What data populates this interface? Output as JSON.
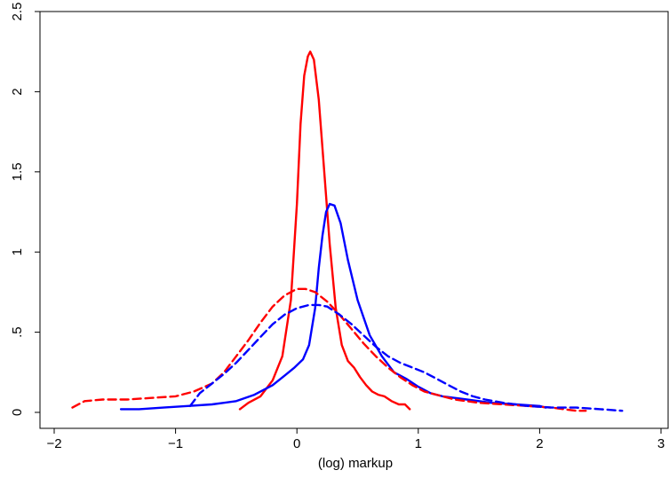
{
  "chart_data": {
    "type": "line",
    "title": "",
    "xlabel": "(log) markup",
    "ylabel": "",
    "xlim": [
      -2,
      3
    ],
    "ylim": [
      0,
      2.5
    ],
    "xticks": [
      {
        "value": -2,
        "label": "−2"
      },
      {
        "value": -1,
        "label": "−1"
      },
      {
        "value": 0,
        "label": "0"
      },
      {
        "value": 1,
        "label": "1"
      },
      {
        "value": 2,
        "label": "2"
      },
      {
        "value": 3,
        "label": "3"
      }
    ],
    "yticks": [
      {
        "value": 0,
        "label": "0"
      },
      {
        "value": 0.5,
        "label": ".5"
      },
      {
        "value": 1,
        "label": "1"
      },
      {
        "value": 1.5,
        "label": "1.5"
      },
      {
        "value": 2,
        "label": "2"
      },
      {
        "value": 2.5,
        "label": "2.5"
      }
    ],
    "grid": false,
    "legend": "none",
    "series": [
      {
        "color": "#ff0000",
        "dash": "solid",
        "points": [
          [
            -0.47,
            0.02
          ],
          [
            -0.4,
            0.06
          ],
          [
            -0.3,
            0.1
          ],
          [
            -0.2,
            0.2
          ],
          [
            -0.12,
            0.35
          ],
          [
            -0.05,
            0.7
          ],
          [
            0.0,
            1.3
          ],
          [
            0.03,
            1.8
          ],
          [
            0.06,
            2.1
          ],
          [
            0.09,
            2.22
          ],
          [
            0.11,
            2.25
          ],
          [
            0.14,
            2.2
          ],
          [
            0.18,
            1.95
          ],
          [
            0.22,
            1.55
          ],
          [
            0.27,
            1.05
          ],
          [
            0.32,
            0.65
          ],
          [
            0.37,
            0.42
          ],
          [
            0.42,
            0.32
          ],
          [
            0.47,
            0.28
          ],
          [
            0.52,
            0.22
          ],
          [
            0.57,
            0.17
          ],
          [
            0.62,
            0.13
          ],
          [
            0.67,
            0.11
          ],
          [
            0.72,
            0.1
          ],
          [
            0.78,
            0.07
          ],
          [
            0.84,
            0.05
          ],
          [
            0.89,
            0.05
          ],
          [
            0.93,
            0.02
          ]
        ]
      },
      {
        "color": "#0000ff",
        "dash": "solid",
        "points": [
          [
            -1.45,
            0.02
          ],
          [
            -1.3,
            0.02
          ],
          [
            -1.1,
            0.03
          ],
          [
            -0.9,
            0.04
          ],
          [
            -0.7,
            0.05
          ],
          [
            -0.5,
            0.07
          ],
          [
            -0.35,
            0.11
          ],
          [
            -0.2,
            0.17
          ],
          [
            -0.1,
            0.23
          ],
          [
            -0.02,
            0.28
          ],
          [
            0.05,
            0.33
          ],
          [
            0.1,
            0.42
          ],
          [
            0.15,
            0.65
          ],
          [
            0.18,
            0.9
          ],
          [
            0.21,
            1.1
          ],
          [
            0.24,
            1.25
          ],
          [
            0.27,
            1.3
          ],
          [
            0.31,
            1.29
          ],
          [
            0.36,
            1.18
          ],
          [
            0.42,
            0.95
          ],
          [
            0.5,
            0.7
          ],
          [
            0.6,
            0.48
          ],
          [
            0.7,
            0.35
          ],
          [
            0.8,
            0.25
          ],
          [
            0.9,
            0.21
          ],
          [
            1.0,
            0.16
          ],
          [
            1.1,
            0.12
          ],
          [
            1.2,
            0.1
          ],
          [
            1.4,
            0.08
          ],
          [
            1.6,
            0.06
          ],
          [
            1.8,
            0.05
          ],
          [
            2.0,
            0.04
          ],
          [
            2.05,
            0.03
          ]
        ]
      },
      {
        "color": "#ff0000",
        "dash": "dashed",
        "points": [
          [
            -1.85,
            0.03
          ],
          [
            -1.75,
            0.07
          ],
          [
            -1.6,
            0.08
          ],
          [
            -1.4,
            0.08
          ],
          [
            -1.2,
            0.09
          ],
          [
            -1.0,
            0.1
          ],
          [
            -0.85,
            0.13
          ],
          [
            -0.7,
            0.18
          ],
          [
            -0.6,
            0.25
          ],
          [
            -0.5,
            0.35
          ],
          [
            -0.4,
            0.45
          ],
          [
            -0.3,
            0.56
          ],
          [
            -0.2,
            0.66
          ],
          [
            -0.1,
            0.73
          ],
          [
            0.0,
            0.77
          ],
          [
            0.07,
            0.77
          ],
          [
            0.15,
            0.75
          ],
          [
            0.25,
            0.69
          ],
          [
            0.35,
            0.61
          ],
          [
            0.45,
            0.52
          ],
          [
            0.55,
            0.43
          ],
          [
            0.65,
            0.35
          ],
          [
            0.75,
            0.28
          ],
          [
            0.85,
            0.22
          ],
          [
            0.95,
            0.17
          ],
          [
            1.05,
            0.13
          ],
          [
            1.15,
            0.11
          ],
          [
            1.3,
            0.08
          ],
          [
            1.5,
            0.06
          ],
          [
            1.7,
            0.05
          ],
          [
            1.9,
            0.04
          ],
          [
            2.1,
            0.03
          ],
          [
            2.3,
            0.01
          ],
          [
            2.38,
            0.01
          ]
        ]
      },
      {
        "color": "#0000ff",
        "dash": "dashed",
        "points": [
          [
            -0.88,
            0.04
          ],
          [
            -0.8,
            0.12
          ],
          [
            -0.7,
            0.18
          ],
          [
            -0.6,
            0.24
          ],
          [
            -0.5,
            0.31
          ],
          [
            -0.4,
            0.39
          ],
          [
            -0.3,
            0.47
          ],
          [
            -0.2,
            0.55
          ],
          [
            -0.1,
            0.61
          ],
          [
            0.0,
            0.65
          ],
          [
            0.1,
            0.67
          ],
          [
            0.18,
            0.67
          ],
          [
            0.25,
            0.66
          ],
          [
            0.35,
            0.61
          ],
          [
            0.45,
            0.55
          ],
          [
            0.55,
            0.48
          ],
          [
            0.65,
            0.41
          ],
          [
            0.75,
            0.35
          ],
          [
            0.85,
            0.31
          ],
          [
            0.95,
            0.28
          ],
          [
            1.05,
            0.25
          ],
          [
            1.15,
            0.21
          ],
          [
            1.25,
            0.17
          ],
          [
            1.35,
            0.13
          ],
          [
            1.45,
            0.1
          ],
          [
            1.55,
            0.08
          ],
          [
            1.7,
            0.06
          ],
          [
            1.9,
            0.04
          ],
          [
            2.1,
            0.03
          ],
          [
            2.3,
            0.03
          ],
          [
            2.5,
            0.02
          ],
          [
            2.68,
            0.01
          ]
        ]
      }
    ]
  }
}
